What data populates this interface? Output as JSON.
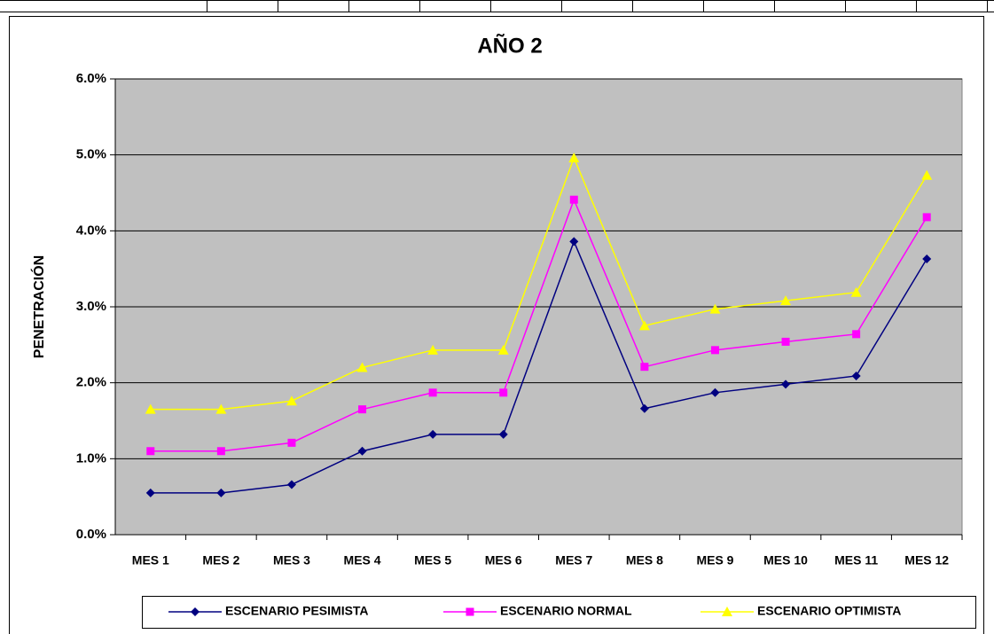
{
  "chart_data": {
    "type": "line",
    "title": "AÑO 2",
    "y_label": "PENETRACIÓN",
    "categories": [
      "MES 1",
      "MES 2",
      "MES 3",
      "MES 4",
      "MES 5",
      "MES 6",
      "MES 7",
      "MES 8",
      "MES 9",
      "MES 10",
      "MES 11",
      "MES 12"
    ],
    "series": [
      {
        "name": "ESCENARIO PESIMISTA",
        "color": "#000080",
        "marker": "diamond",
        "values": [
          0.55,
          0.55,
          0.66,
          1.1,
          1.32,
          1.32,
          3.86,
          1.66,
          1.87,
          1.98,
          2.09,
          3.63
        ]
      },
      {
        "name": "ESCENARIO NORMAL",
        "color": "#ff00ff",
        "marker": "square",
        "values": [
          1.1,
          1.1,
          1.21,
          1.65,
          1.87,
          1.87,
          4.41,
          2.21,
          2.43,
          2.54,
          2.64,
          4.18
        ]
      },
      {
        "name": "ESCENARIO OPTIMISTA",
        "color": "#ffff00",
        "marker": "triangle",
        "values": [
          1.65,
          1.65,
          1.76,
          2.2,
          2.43,
          2.43,
          4.96,
          2.75,
          2.97,
          3.08,
          3.19,
          4.73
        ]
      }
    ],
    "ylim": [
      0,
      6
    ],
    "yticks": [
      {
        "value": 0,
        "label": "0.0%"
      },
      {
        "value": 1,
        "label": "1.0%"
      },
      {
        "value": 2,
        "label": "2.0%"
      },
      {
        "value": 3,
        "label": "3.0%"
      },
      {
        "value": 4,
        "label": "4.0%"
      },
      {
        "value": 5,
        "label": "5.0%"
      },
      {
        "value": 6,
        "label": "6.0%"
      }
    ],
    "grid": true,
    "plot_background": "#c0c0c0",
    "legend": "bottom"
  }
}
